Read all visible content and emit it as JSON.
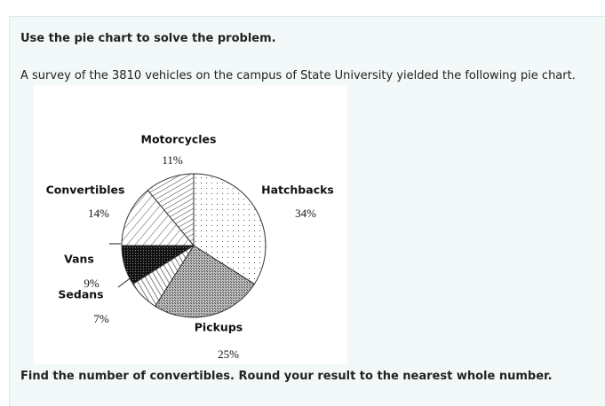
{
  "instruction": "Use the pie chart to solve the problem.",
  "intro": "A survey of the 3810 vehicles on the campus of State University yielded the following pie chart.",
  "question": "Find the number of convertibles. Round your result to the nearest whole number.",
  "chart_data": {
    "type": "pie",
    "categories": [
      "Hatchbacks",
      "Pickups",
      "Sedans",
      "Vans",
      "Convertibles",
      "Motorcycles"
    ],
    "values": [
      34,
      25,
      7,
      9,
      14,
      11
    ],
    "value_labels": [
      "34%",
      "25%",
      "7%",
      "9%",
      "14%",
      "11%"
    ]
  }
}
